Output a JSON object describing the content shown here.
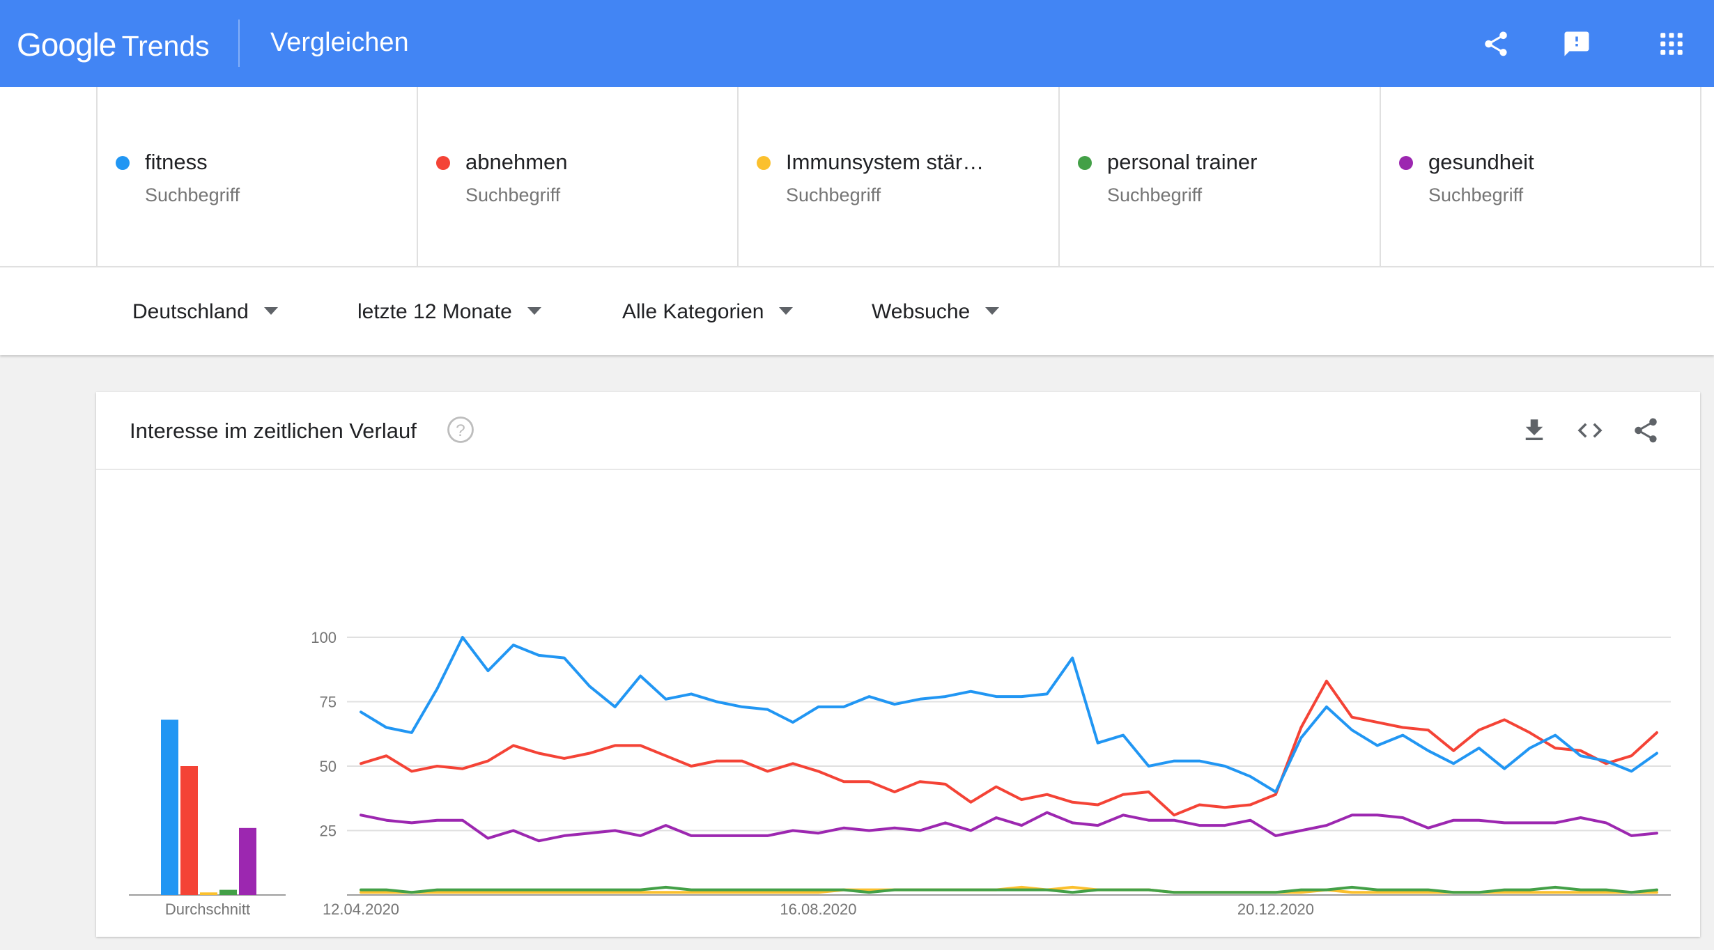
{
  "header": {
    "logo_google": "Google",
    "logo_trends": "Trends",
    "page_title": "Vergleichen",
    "icons": [
      "share-icon",
      "feedback-icon",
      "apps-grid-icon"
    ]
  },
  "terms": [
    {
      "name": "fitness",
      "kind": "Suchbegriff",
      "color": "#2196f3"
    },
    {
      "name": "abnehmen",
      "kind": "Suchbegriff",
      "color": "#f44336"
    },
    {
      "name": "Immunsystem stär…",
      "kind": "Suchbegriff",
      "color": "#fbc02d"
    },
    {
      "name": "personal trainer",
      "kind": "Suchbegriff",
      "color": "#43a047"
    },
    {
      "name": "gesundheit",
      "kind": "Suchbegriff",
      "color": "#9c27b0"
    }
  ],
  "filters": {
    "region": "Deutschland",
    "period": "letzte 12 Monate",
    "category": "Alle Kategorien",
    "search_type": "Websuche"
  },
  "card": {
    "title": "Interesse im zeitlichen Verlauf",
    "icons": [
      "help-icon",
      "download-icon",
      "embed-code-icon",
      "share-icon"
    ]
  },
  "chart_data": {
    "type": "line",
    "ylim": [
      0,
      100
    ],
    "yticks": [
      25,
      50,
      75,
      100
    ],
    "grid": true,
    "x_start": "12.04.2020",
    "x_tick_labels": [
      {
        "label": "12.04.2020",
        "index": 0
      },
      {
        "label": "16.08.2020",
        "index": 18
      },
      {
        "label": "20.12.2020",
        "index": 36
      }
    ],
    "series": [
      {
        "name": "fitness",
        "color": "#2196f3",
        "average": 68,
        "values": [
          71,
          65,
          63,
          80,
          100,
          87,
          97,
          93,
          92,
          81,
          73,
          85,
          76,
          78,
          75,
          73,
          72,
          67,
          73,
          73,
          77,
          74,
          76,
          77,
          79,
          77,
          77,
          78,
          92,
          59,
          62,
          50,
          52,
          52,
          50,
          46,
          40,
          61,
          73,
          64,
          58,
          62,
          56,
          51,
          57,
          49,
          57,
          62,
          54,
          52,
          48,
          55
        ]
      },
      {
        "name": "abnehmen",
        "color": "#f44336",
        "average": 50,
        "values": [
          51,
          54,
          48,
          50,
          49,
          52,
          58,
          55,
          53,
          55,
          58,
          58,
          54,
          50,
          52,
          52,
          48,
          51,
          48,
          44,
          44,
          40,
          44,
          43,
          36,
          42,
          37,
          39,
          36,
          35,
          39,
          40,
          31,
          35,
          34,
          35,
          39,
          65,
          83,
          69,
          67,
          65,
          64,
          56,
          64,
          68,
          63,
          57,
          56,
          51,
          54,
          63
        ]
      },
      {
        "name": "Immunsystem stär…",
        "color": "#fbc02d",
        "average": 1,
        "values": [
          1,
          1,
          1,
          1,
          1,
          1,
          1,
          1,
          1,
          1,
          1,
          1,
          1,
          1,
          1,
          1,
          1,
          1,
          1,
          2,
          2,
          2,
          2,
          2,
          2,
          2,
          3,
          2,
          3,
          2,
          2,
          2,
          1,
          1,
          1,
          1,
          1,
          1,
          2,
          1,
          1,
          1,
          1,
          1,
          1,
          1,
          1,
          1,
          1,
          1,
          1,
          1
        ]
      },
      {
        "name": "personal trainer",
        "color": "#43a047",
        "average": 2,
        "values": [
          2,
          2,
          1,
          2,
          2,
          2,
          2,
          2,
          2,
          2,
          2,
          2,
          3,
          2,
          2,
          2,
          2,
          2,
          2,
          2,
          1,
          2,
          2,
          2,
          2,
          2,
          2,
          2,
          1,
          2,
          2,
          2,
          1,
          1,
          1,
          1,
          1,
          2,
          2,
          3,
          2,
          2,
          2,
          1,
          1,
          2,
          2,
          3,
          2,
          2,
          1,
          2
        ]
      },
      {
        "name": "gesundheit",
        "color": "#9c27b0",
        "average": 26,
        "values": [
          31,
          29,
          28,
          29,
          29,
          22,
          25,
          21,
          23,
          24,
          25,
          23,
          27,
          23,
          23,
          23,
          23,
          25,
          24,
          26,
          25,
          26,
          25,
          28,
          25,
          30,
          27,
          32,
          28,
          27,
          31,
          29,
          29,
          27,
          27,
          29,
          23,
          25,
          27,
          31,
          31,
          30,
          26,
          29,
          29,
          28,
          28,
          28,
          30,
          28,
          23,
          24
        ]
      }
    ],
    "average_label": "Durchschnitt"
  }
}
